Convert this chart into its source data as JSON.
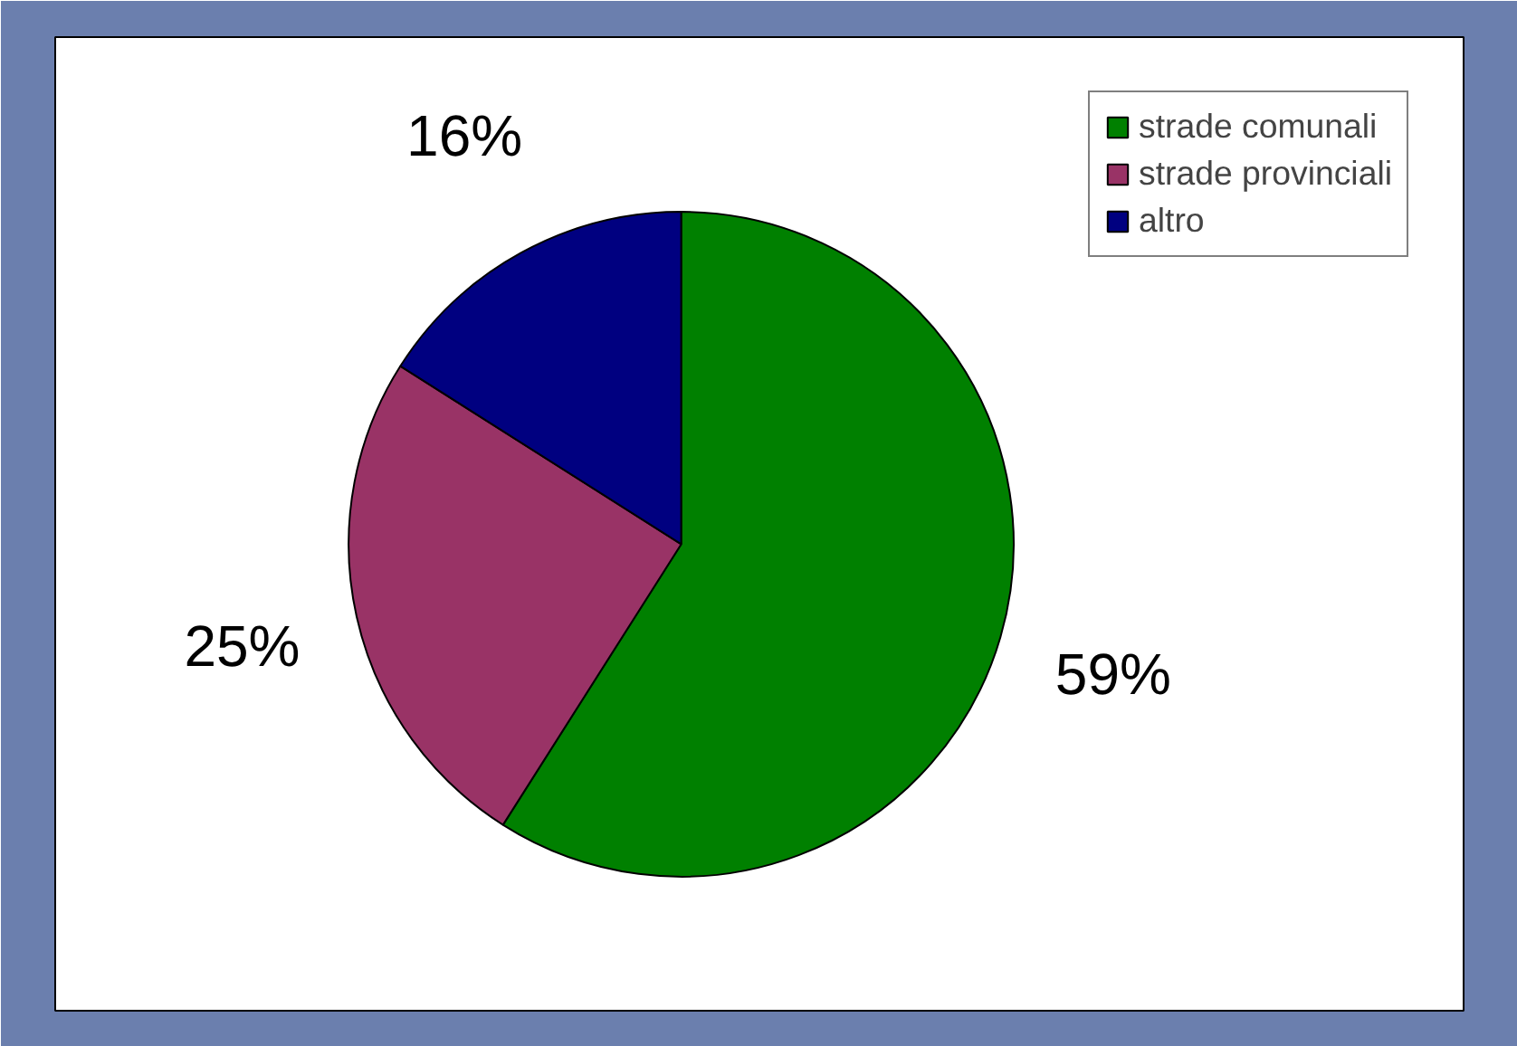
{
  "chart_data": {
    "type": "pie",
    "categories": [
      "strade comunali",
      "strade provinciali",
      "altro"
    ],
    "values": [
      59,
      25,
      16
    ],
    "colors": [
      "#008000",
      "#993366",
      "#000080"
    ],
    "value_labels": [
      "59%",
      "25%",
      "16%"
    ],
    "legend": "top right"
  }
}
